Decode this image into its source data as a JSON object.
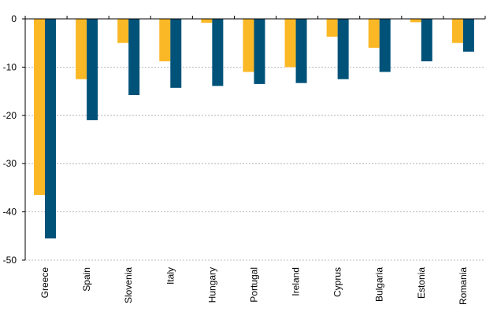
{
  "chart_data": {
    "type": "bar",
    "title": "",
    "xlabel": "",
    "ylabel": "",
    "categories": [
      "Greece",
      "Spain",
      "Slovenia",
      "Italy",
      "Hungary",
      "Portugal",
      "Ireland",
      "Cyprus",
      "Bulgaria",
      "Estonia",
      "Romania"
    ],
    "series": [
      {
        "color": "#fbb826",
        "values": [
          -36.5,
          -12.5,
          -5.0,
          -8.8,
          -0.8,
          -11.0,
          -10.0,
          -3.7,
          -6.0,
          -0.7,
          -5.0
        ]
      },
      {
        "color": "#005279",
        "values": [
          -45.5,
          -21.0,
          -15.8,
          -14.3,
          -13.9,
          -13.5,
          -13.3,
          -12.5,
          -11.0,
          -8.8,
          -6.8
        ]
      }
    ],
    "ylim": [
      -50,
      0
    ],
    "yticks": [
      0,
      -10,
      -20,
      -30,
      -40,
      -50
    ],
    "ytick_labels": [
      "0",
      "-10",
      "-20",
      "-30",
      "-40",
      "-50"
    ],
    "grid": true,
    "legend": "none"
  }
}
